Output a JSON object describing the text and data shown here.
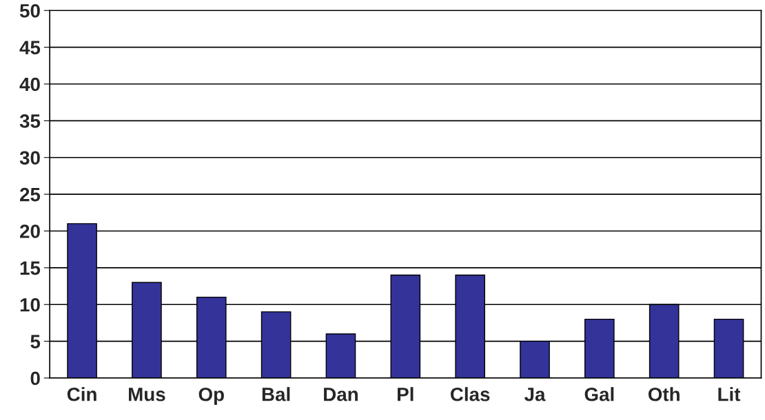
{
  "chart_data": {
    "type": "bar",
    "categories": [
      "Cin",
      "Mus",
      "Op",
      "Bal",
      "Dan",
      "Pl",
      "Clas",
      "Ja",
      "Gal",
      "Oth",
      "Lit"
    ],
    "values": [
      21,
      13,
      11,
      9,
      6,
      14,
      14,
      5,
      8,
      10,
      8
    ],
    "color": "#333399",
    "ylim": [
      0,
      50
    ],
    "yticks": [
      0,
      5,
      10,
      15,
      20,
      25,
      30,
      35,
      40,
      45,
      50
    ],
    "grid": "y",
    "legend": false
  }
}
